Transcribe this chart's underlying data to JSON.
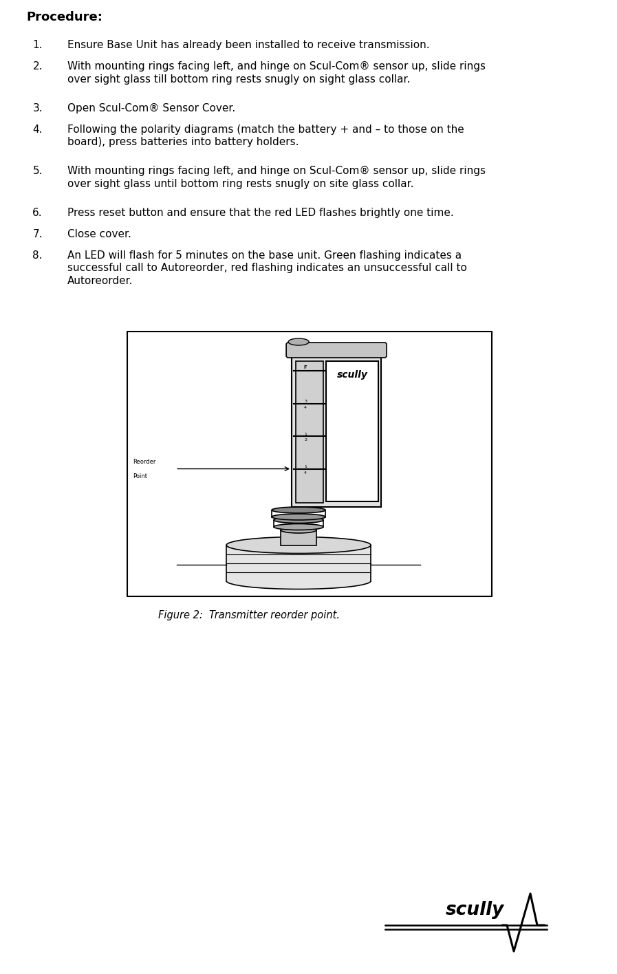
{
  "title": "Procedure:",
  "steps": [
    "Ensure Base Unit has already been installed to receive transmission.",
    "With mounting rings facing left, and hinge on Scul-Com® sensor up, slide rings\nover sight glass till bottom ring rests snugly on sight glass collar.",
    "Open Scul-Com® Sensor Cover.",
    "Following the polarity diagrams (match the battery + and – to those on the\nboard), press batteries into battery holders.",
    "With mounting rings facing left, and hinge on Scul-Com® sensor up, slide rings\nover sight glass until bottom ring rests snugly on site glass collar.",
    "Press reset button and ensure that the red LED flashes brightly one time. ",
    "Close cover.",
    "An LED will flash for 5 minutes on the base unit. Green flashing indicates a\nsuccessful call to Autoreorder, red flashing indicates an unsuccessful call to\nAutoreorder."
  ],
  "figure_caption": "Figure 2:  Transmitter reorder point.",
  "background_color": "#ffffff",
  "text_color": "#000000",
  "title_fontsize": 13,
  "body_fontsize": 11
}
